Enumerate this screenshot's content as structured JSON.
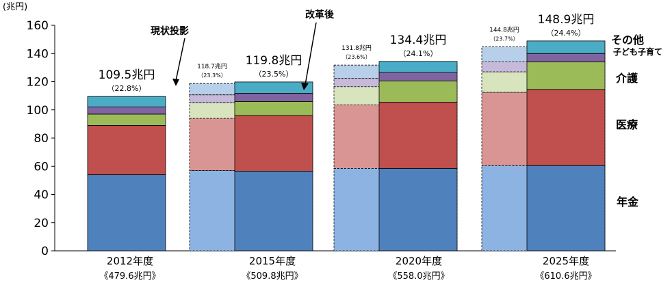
{
  "chart_data": {
    "type": "bar",
    "stacked": true,
    "y_unit_label": "(兆円)",
    "ylim": [
      0,
      160
    ],
    "yticks": [
      0,
      20,
      40,
      60,
      80,
      100,
      120,
      140,
      160
    ],
    "grid": false,
    "groups": [
      {
        "label": "2012年度",
        "gdp_label": "《479.6兆円》",
        "bars": [
          {
            "variant": "actual",
            "segments": [
              54,
              35,
              8,
              5,
              7.5
            ],
            "total_label": "109.5兆円",
            "pct_label": "（22.8%）"
          }
        ]
      },
      {
        "label": "2015年度",
        "gdp_label": "《509.8兆円》",
        "bars": [
          {
            "variant": "projection",
            "segments": [
              57,
              37,
              11,
              5.7,
              8
            ],
            "total_label": "118.7兆円",
            "pct_label": "（23.3%）"
          },
          {
            "variant": "reform",
            "segments": [
              56.5,
              39.5,
              10,
              5.8,
              8
            ],
            "total_label": "119.8兆円",
            "pct_label": "（23.5%）"
          }
        ]
      },
      {
        "label": "2020年度",
        "gdp_label": "《558.0兆円》",
        "bars": [
          {
            "variant": "projection",
            "segments": [
              58.5,
              45,
              13,
              6,
              9.3
            ],
            "total_label": "131.8兆円",
            "pct_label": "（23.6%）"
          },
          {
            "variant": "reform",
            "segments": [
              58.5,
              47,
              15,
              6,
              7.9
            ],
            "total_label": "134.4兆円",
            "pct_label": "（24.1%）"
          }
        ]
      },
      {
        "label": "2025年度",
        "gdp_label": "《610.6兆円》",
        "bars": [
          {
            "variant": "projection",
            "segments": [
              60.5,
              52,
              14.5,
              7,
              10.8
            ],
            "total_label": "144.8兆円",
            "pct_label": "（23.7%）"
          },
          {
            "variant": "reform",
            "segments": [
              60.5,
              54,
              19.5,
              6,
              8.9
            ],
            "total_label": "148.9兆円",
            "pct_label": "（24.4%）"
          }
        ]
      }
    ],
    "legend": [
      {
        "label": "年金"
      },
      {
        "label": "医療"
      },
      {
        "label": "介護"
      },
      {
        "label": "子ども子育て"
      },
      {
        "label": "その他"
      }
    ],
    "annotations": {
      "projection": "現状投影",
      "reform": "改革後"
    },
    "colors": {
      "actual": [
        "#4f81bd",
        "#c0504d",
        "#9bbb59",
        "#8064a2",
        "#4bacc6"
      ],
      "reform": [
        "#4f81bd",
        "#c0504d",
        "#9bbb59",
        "#8064a2",
        "#4bacc6"
      ],
      "projection": [
        "#8db3e2",
        "#d99594",
        "#d7e4bd",
        "#c7b9d9",
        "#b7cfe8"
      ]
    }
  }
}
